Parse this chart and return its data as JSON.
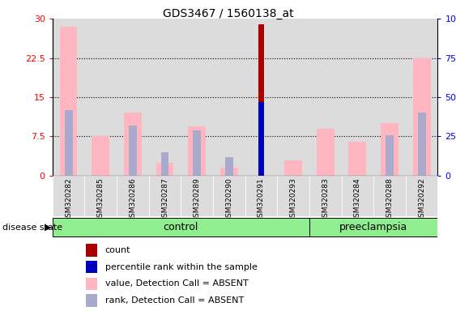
{
  "title": "GDS3467 / 1560138_at",
  "samples": [
    "GSM320282",
    "GSM320285",
    "GSM320286",
    "GSM320287",
    "GSM320289",
    "GSM320290",
    "GSM320291",
    "GSM320293",
    "GSM320283",
    "GSM320284",
    "GSM320288",
    "GSM320292"
  ],
  "groups": [
    "control",
    "control",
    "control",
    "control",
    "control",
    "control",
    "control",
    "control",
    "preeclampsia",
    "preeclampsia",
    "preeclampsia",
    "preeclampsia"
  ],
  "value_absent": [
    28.5,
    7.5,
    12.0,
    2.5,
    9.5,
    1.5,
    null,
    3.0,
    9.0,
    6.5,
    10.0,
    22.5
  ],
  "rank_absent": [
    42.0,
    null,
    32.0,
    15.0,
    29.0,
    12.0,
    null,
    null,
    null,
    null,
    26.0,
    40.0
  ],
  "count": [
    null,
    null,
    null,
    null,
    null,
    null,
    29.0,
    null,
    null,
    null,
    null,
    null
  ],
  "percentile_rank": [
    null,
    null,
    null,
    null,
    null,
    null,
    47.0,
    null,
    null,
    null,
    null,
    null
  ],
  "ylim_left": [
    0,
    30
  ],
  "ylim_right": [
    0,
    100
  ],
  "yticks_left": [
    0,
    7.5,
    15,
    22.5,
    30
  ],
  "ytick_labels_left": [
    "0",
    "7.5",
    "15",
    "22.5",
    "30"
  ],
  "yticks_right": [
    0,
    25,
    50,
    75,
    100
  ],
  "ytick_labels_right": [
    "0",
    "25",
    "50",
    "75",
    "100%"
  ],
  "color_value_absent": "#FFB6C1",
  "color_rank_absent": "#AAAACC",
  "color_count": "#AA0000",
  "color_percentile": "#0000BB",
  "col_bg": "#DCDCDC",
  "control_color": "#90EE90",
  "preeclampsia_color": "#90EE90",
  "legend_items": [
    {
      "label": "count",
      "color": "#AA0000"
    },
    {
      "label": "percentile rank within the sample",
      "color": "#0000BB"
    },
    {
      "label": "value, Detection Call = ABSENT",
      "color": "#FFB6C1"
    },
    {
      "label": "rank, Detection Call = ABSENT",
      "color": "#AAAACC"
    }
  ]
}
